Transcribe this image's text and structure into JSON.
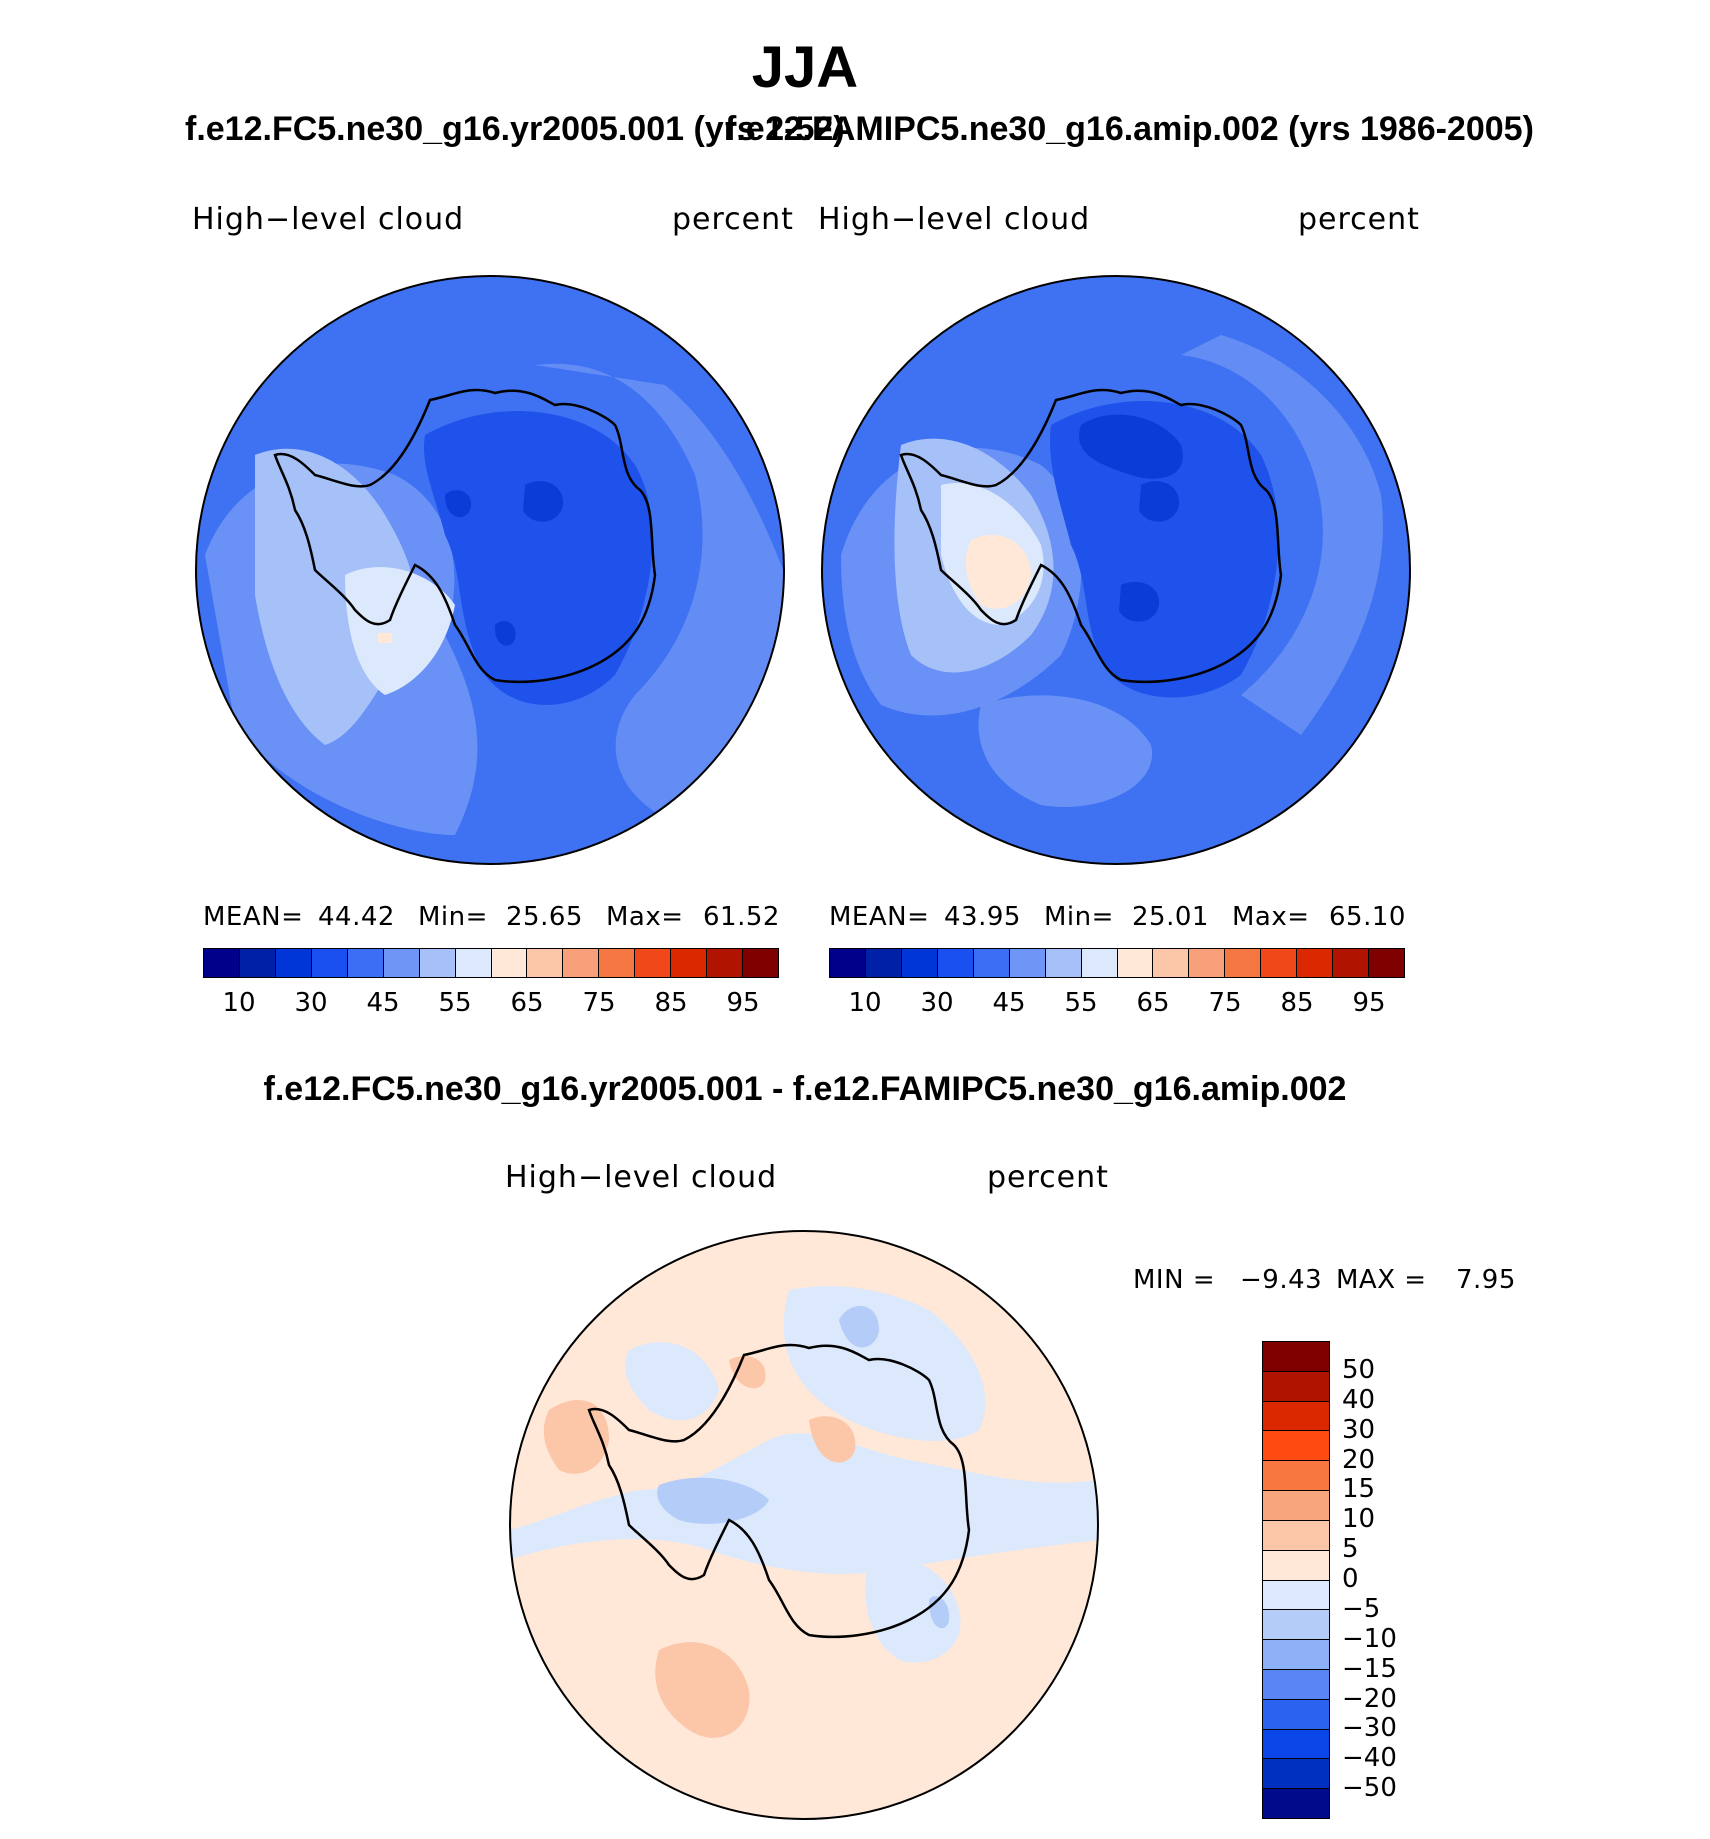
{
  "title": "JJA",
  "panels": [
    {
      "run": "f.e12.FC5.ne30_g16.yr2005.001 (yrs 2-52)",
      "variable": "High−level cloud",
      "units": "percent",
      "stats": {
        "mean_label": "MEAN=",
        "mean": "44.42",
        "min_label": "Min=",
        "min": "25.65",
        "max_label": "Max=",
        "max": "61.52"
      }
    },
    {
      "run": "f.e12.FAMIPC5.ne30_g16.amip.002 (yrs 1986-2005)",
      "variable": "High−level cloud",
      "units": "percent",
      "stats": {
        "mean_label": "MEAN=",
        "mean": "43.95",
        "min_label": "Min=",
        "min": "25.01",
        "max_label": "Max=",
        "max": "65.10"
      }
    }
  ],
  "diff": {
    "title": "f.e12.FC5.ne30_g16.yr2005.001 - f.e12.FAMIPC5.ne30_g16.amip.002",
    "variable": "High−level cloud",
    "units": "percent",
    "minmax": {
      "min_label": "MIN =",
      "min": "−9.43",
      "max_label": "MAX =",
      "max": "7.95"
    }
  },
  "abs_colorbar": {
    "colors": [
      "#00008b",
      "#0020a8",
      "#0036d8",
      "#1a50f0",
      "#3c6ef5",
      "#6e96f7",
      "#a6c0f8",
      "#dce8fb",
      "#ffe8d8",
      "#fcc6a8",
      "#f8a07a",
      "#f47640",
      "#f04818",
      "#dc2800",
      "#b01400",
      "#800000"
    ],
    "ticks": [
      "10",
      "30",
      "45",
      "55",
      "65",
      "75",
      "85",
      "95"
    ]
  },
  "diff_colorbar": {
    "colors": [
      "#800000",
      "#b01400",
      "#dc2800",
      "#ff4a12",
      "#f87640",
      "#f8a47c",
      "#fcc6a8",
      "#ffe8d8",
      "#dce8fb",
      "#b4ccf8",
      "#8eb0f7",
      "#5a86f3",
      "#2c62f0",
      "#0a46e8",
      "#0030c0",
      "#000a8a"
    ],
    "ticks": [
      "50",
      "40",
      "30",
      "20",
      "15",
      "10",
      "5",
      "0",
      "−5",
      "−10",
      "−15",
      "−20",
      "−30",
      "−40",
      "−50"
    ]
  },
  "map_colors": {
    "base": "#3f72f2",
    "deep": "#1f52ea",
    "darkest": "#0a3dd8",
    "medium": "#6a92f6",
    "light": "#a6c0f8",
    "lightest": "#dce8fb",
    "cream": "#ffe8d8",
    "diff_base": "#ffe8d8",
    "diff_neg": "#dce8fb",
    "diff_neg2": "#b4ccf8",
    "diff_pos": "#fcc6a8",
    "coast": "#000000"
  }
}
